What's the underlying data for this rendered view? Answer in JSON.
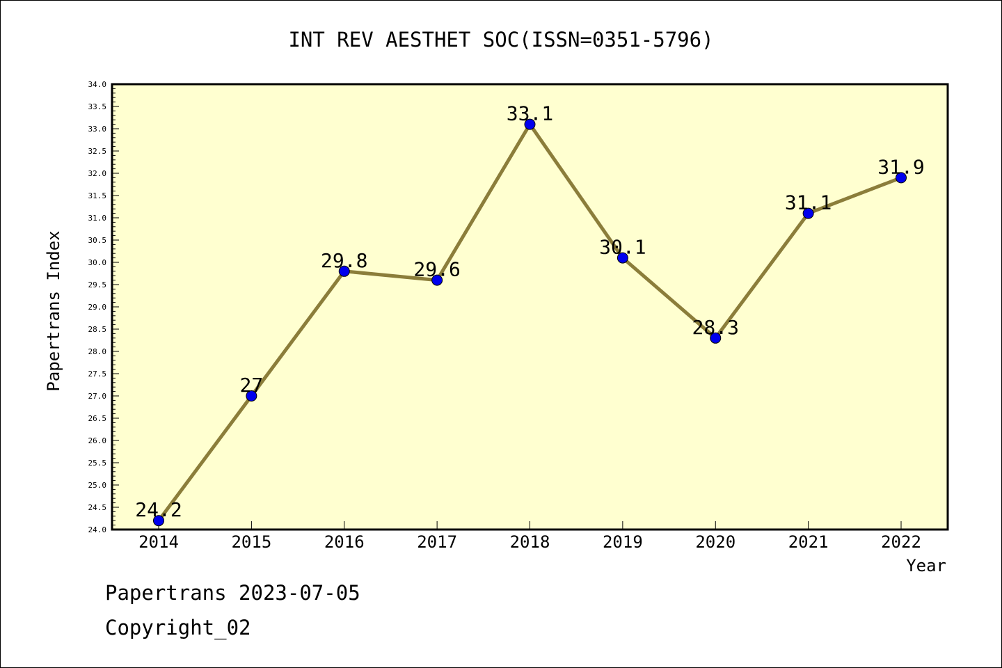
{
  "chart_data": {
    "type": "line",
    "title": "INT REV AESTHET SOC(ISSN=0351-5796)",
    "xlabel": "Year",
    "ylabel": "Papertrans Index",
    "x": [
      "2014",
      "2015",
      "2016",
      "2017",
      "2018",
      "2019",
      "2020",
      "2021",
      "2022"
    ],
    "series": [
      {
        "values": [
          24.2,
          27,
          29.8,
          29.6,
          33.1,
          30.1,
          28.3,
          31.1,
          31.9
        ],
        "labels": [
          "24.2",
          "27",
          "29.8",
          "29.6",
          "33.1",
          "30.1",
          "28.3",
          "31.1",
          "31.9"
        ]
      }
    ],
    "ylim": [
      24.0,
      34.0
    ],
    "yticks": [
      "24.0",
      "24.5",
      "25.0",
      "25.5",
      "26.0",
      "26.5",
      "27.0",
      "27.5",
      "28.0",
      "28.5",
      "29.0",
      "29.5",
      "30.0",
      "30.5",
      "31.0",
      "31.5",
      "32.0",
      "32.5",
      "33.0",
      "33.5",
      "34.0"
    ],
    "grid": false,
    "legend": "none",
    "colors": {
      "plot_background": "#ffffd0",
      "line": "#8b7d3a",
      "marker": "#0000ee",
      "axis": "#000000"
    }
  },
  "footer": {
    "line1": "Papertrans 2023-07-05",
    "line2": "Copyright_02"
  }
}
